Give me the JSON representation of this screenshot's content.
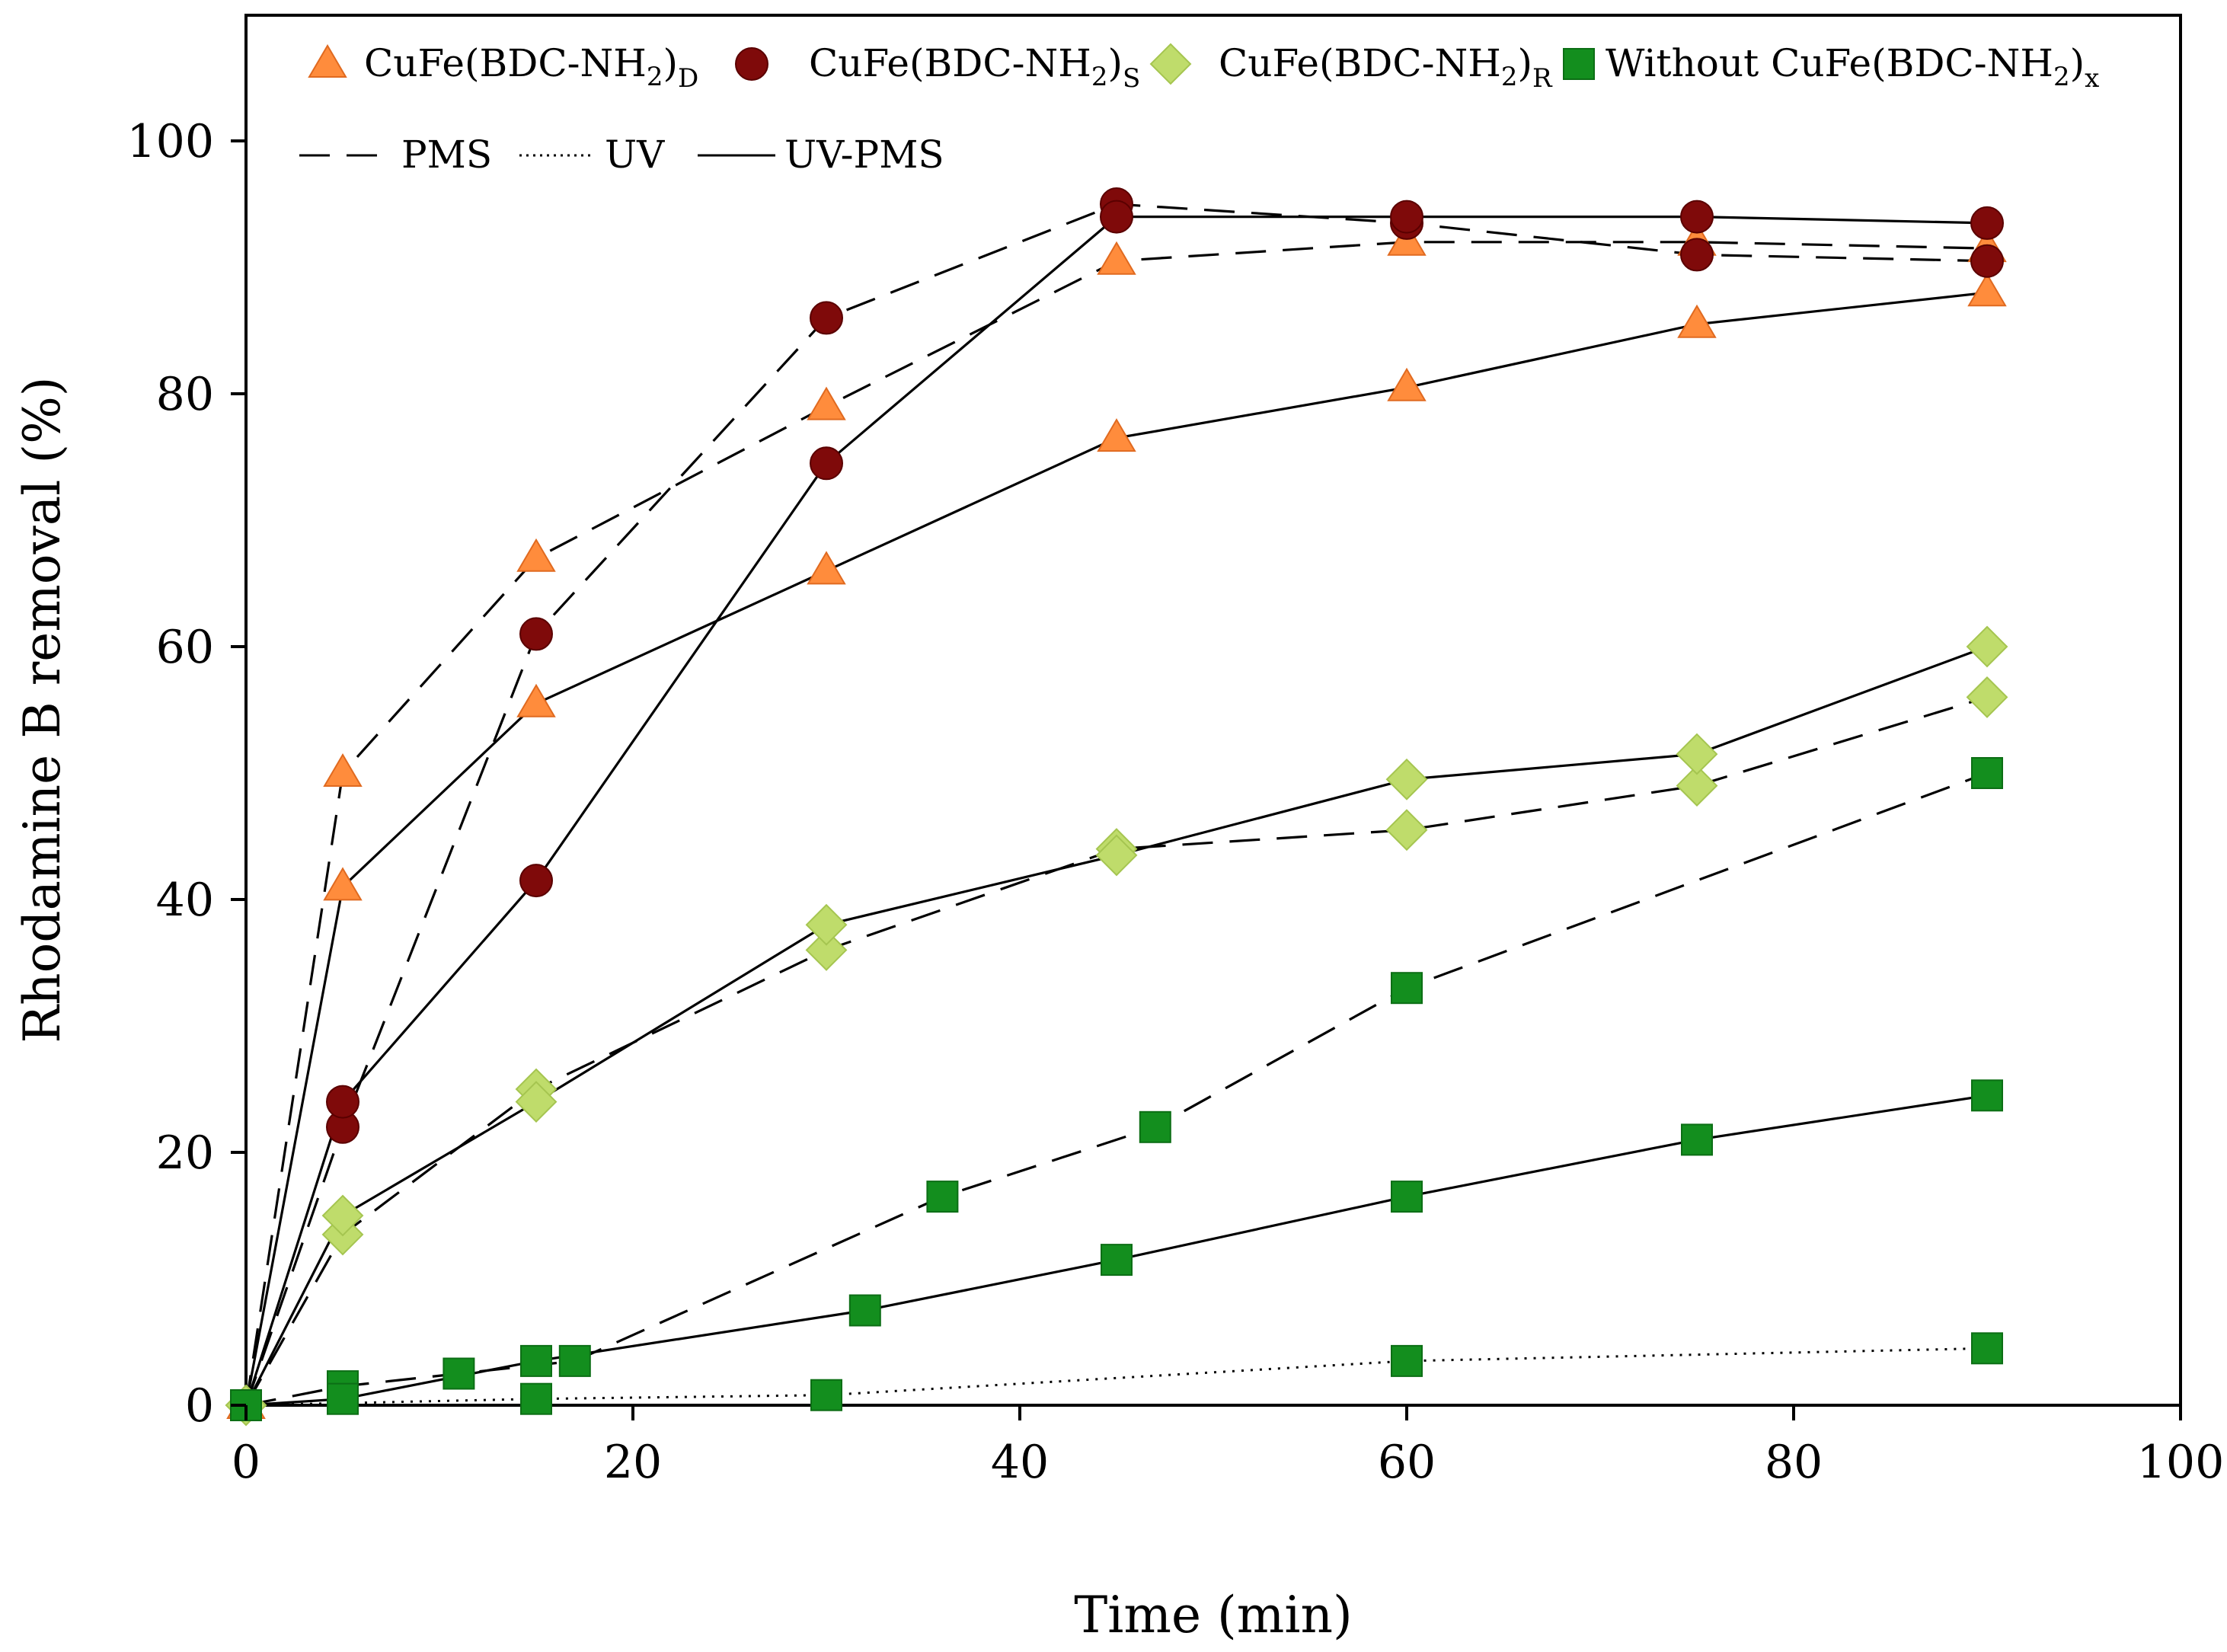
{
  "chart_data": {
    "type": "line",
    "title": "",
    "xlabel": "Time (min)",
    "ylabel": "Rhodamine B removal (%)",
    "xlim": [
      0,
      100
    ],
    "ylim": [
      0,
      110
    ],
    "xticks": [
      0,
      20,
      40,
      60,
      80,
      100
    ],
    "yticks": [
      0,
      20,
      40,
      60,
      80,
      100
    ],
    "xtick_labels": [
      "0",
      "20",
      "40",
      "60",
      "80",
      "100"
    ],
    "ytick_labels": [
      "0",
      "20",
      "40",
      "60",
      "80",
      "100"
    ],
    "grid": false,
    "legend_position": "top",
    "markers": [
      {
        "key": "D",
        "base": "CuFe(BDC-NH",
        "sub2": "2",
        "close": ")",
        "sub": "D",
        "shape": "triangle",
        "color": "#FF8C3C",
        "stroke": "#E06A20"
      },
      {
        "key": "S",
        "base": "CuFe(BDC-NH",
        "sub2": "2",
        "close": ")",
        "sub": "S",
        "shape": "circle",
        "color": "#7F0A0A",
        "stroke": "#5A0000"
      },
      {
        "key": "R",
        "base": "CuFe(BDC-NH",
        "sub2": "2",
        "close": ")",
        "sub": "R",
        "shape": "diamond",
        "color": "#BFDC6B",
        "stroke": "#A5C550"
      },
      {
        "key": "X",
        "base": "Without CuFe(BDC-NH",
        "sub2": "2",
        "close": ")",
        "sub": "x",
        "shape": "square",
        "color": "#138E1E",
        "stroke": "#0C6E15"
      }
    ],
    "linestyles": [
      {
        "label": "PMS",
        "style": "dashed"
      },
      {
        "label": "UV",
        "style": "dotted"
      },
      {
        "label": "UV-PMS",
        "style": "solid"
      }
    ],
    "series": [
      {
        "name": "CuFe(BDC-NH2)D PMS",
        "marker": "D",
        "style": "dashed",
        "x": [
          0,
          5,
          15,
          30,
          45,
          60,
          75,
          90
        ],
        "y": [
          0,
          50,
          67,
          79,
          90.5,
          92,
          92,
          91.5
        ]
      },
      {
        "name": "CuFe(BDC-NH2)D UV-PMS",
        "marker": "D",
        "style": "solid",
        "x": [
          0,
          5,
          15,
          30,
          45,
          60,
          75,
          90
        ],
        "y": [
          0,
          41,
          55.5,
          66,
          76.5,
          80.5,
          85.5,
          88
        ]
      },
      {
        "name": "CuFe(BDC-NH2)S PMS",
        "marker": "S",
        "style": "dashed",
        "x": [
          0,
          5,
          15,
          30,
          45,
          60,
          75,
          90
        ],
        "y": [
          0,
          22,
          61,
          86,
          95,
          93.5,
          91,
          90.5
        ]
      },
      {
        "name": "CuFe(BDC-NH2)S UV-PMS",
        "marker": "S",
        "style": "solid",
        "x": [
          0,
          5,
          15,
          30,
          45,
          60,
          75,
          90
        ],
        "y": [
          0,
          24,
          41.5,
          74.5,
          94,
          94,
          94,
          93.5
        ]
      },
      {
        "name": "CuFe(BDC-NH2)R PMS",
        "marker": "R",
        "style": "dashed",
        "x": [
          0,
          5,
          15,
          30,
          45,
          60,
          75,
          90
        ],
        "y": [
          0,
          13.5,
          25,
          36,
          44,
          45.5,
          49,
          56
        ]
      },
      {
        "name": "CuFe(BDC-NH2)R UV-PMS",
        "marker": "R",
        "style": "solid",
        "x": [
          0,
          5,
          15,
          30,
          45,
          60,
          75,
          90
        ],
        "y": [
          0,
          15,
          24,
          38,
          43.5,
          49.5,
          51.5,
          60
        ]
      },
      {
        "name": "Without CuFe(BDC-NH2)x PMS",
        "marker": "X",
        "style": "dashed",
        "x": [
          0,
          5,
          11,
          17,
          36,
          47,
          60,
          90
        ],
        "y": [
          0,
          1.5,
          2.5,
          3.5,
          16.5,
          22,
          33,
          50
        ]
      },
      {
        "name": "Without CuFe(BDC-NH2)x UV-PMS",
        "marker": "X",
        "style": "solid",
        "x": [
          0,
          5,
          15,
          32,
          45,
          60,
          75,
          90
        ],
        "y": [
          0,
          0.5,
          3.5,
          7.5,
          11.5,
          16.5,
          21,
          24.5
        ]
      },
      {
        "name": "Without CuFe(BDC-NH2)x UV",
        "marker": "X",
        "style": "dotted",
        "x": [
          0,
          15,
          30,
          60,
          90
        ],
        "y": [
          0,
          0.5,
          0.8,
          3.5,
          4.5
        ]
      }
    ]
  }
}
